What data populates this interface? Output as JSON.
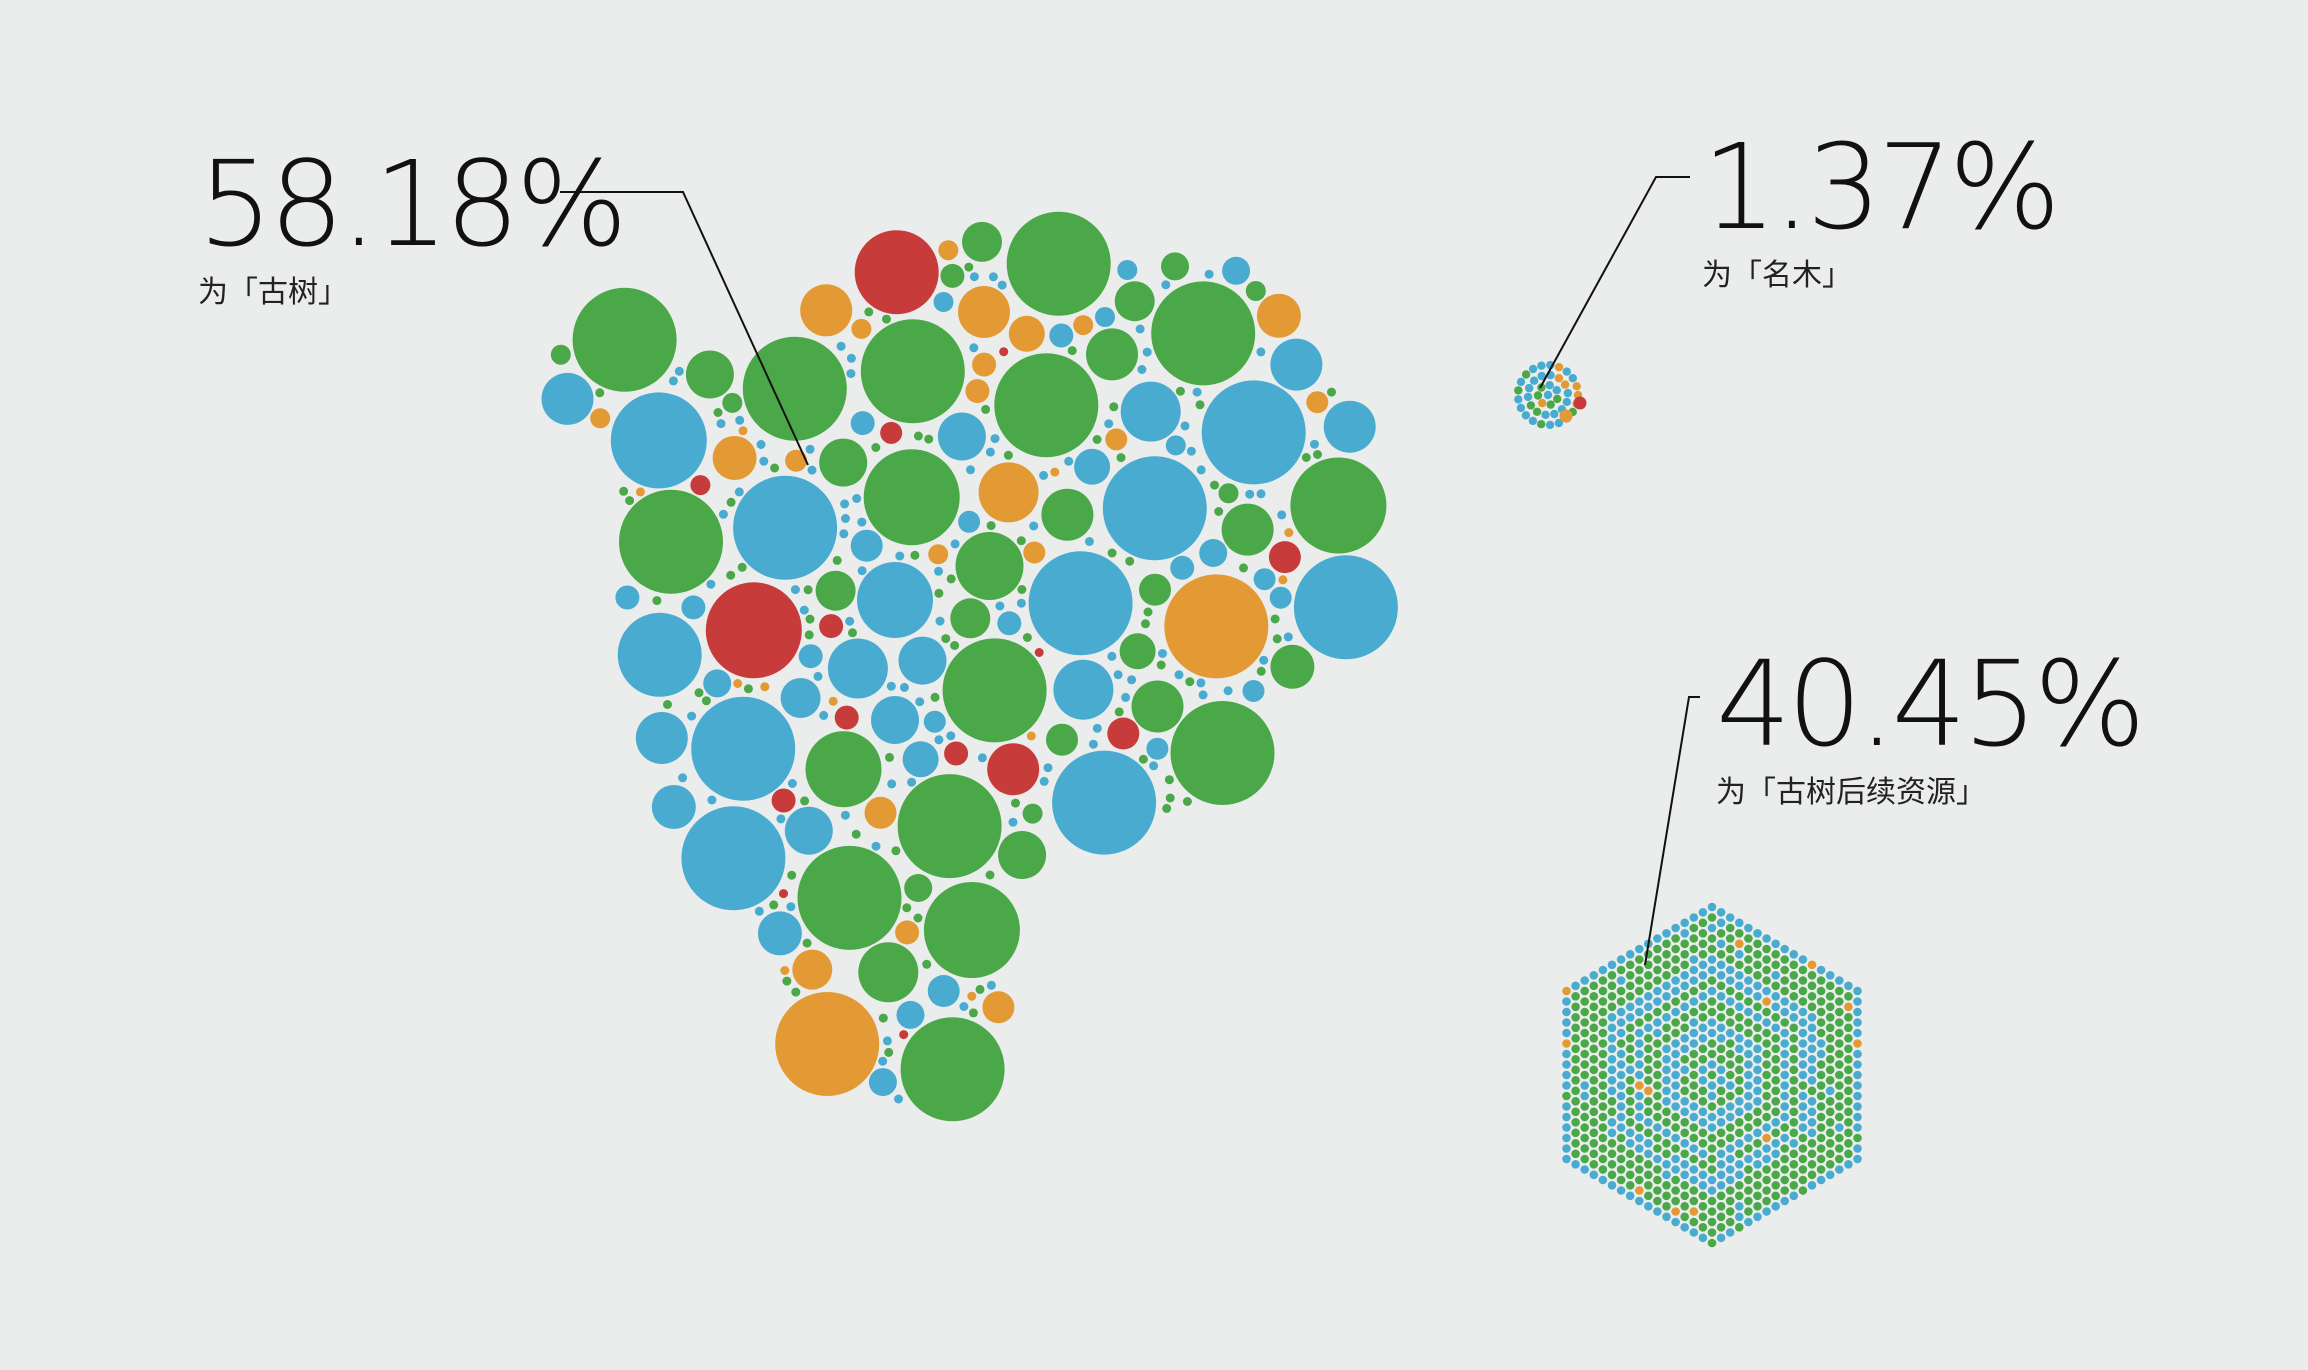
{
  "colors": {
    "background": "#ebedec",
    "blue": "#4aabd1",
    "green": "#4aa848",
    "orange": "#e39a34",
    "red": "#c73b3b",
    "line": "#111111"
  },
  "callouts": {
    "ancient": {
      "percent": "58.18%",
      "label": "为「古树」"
    },
    "famous": {
      "percent": "1.37%",
      "label": "为「名木」"
    },
    "reserve": {
      "percent": "40.45%",
      "label": "为「古树后续资源」"
    }
  },
  "chart_data": {
    "type": "bubble-cluster",
    "title": "",
    "categories": [
      "古树",
      "名木",
      "古树后续资源"
    ],
    "values": [
      58.18,
      1.37,
      40.45
    ],
    "unit": "%",
    "color_legend": "none shown",
    "clusters": [
      {
        "category": "古树",
        "share": 58.18,
        "shape": "irregular packed cluster of mixed-size circles",
        "colors": [
          "blue",
          "green",
          "orange",
          "red"
        ]
      },
      {
        "category": "名木",
        "share": 1.37,
        "shape": "small round cluster",
        "colors": [
          "blue",
          "green",
          "orange",
          "red"
        ]
      },
      {
        "category": "古树后续资源",
        "share": 40.45,
        "shape": "hexagon of small equal dots, green outer rings and blue inner rings",
        "colors": [
          "green",
          "blue",
          "orange"
        ]
      }
    ]
  }
}
